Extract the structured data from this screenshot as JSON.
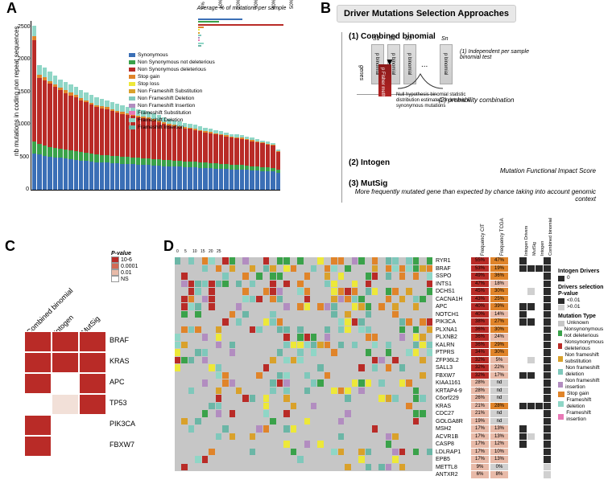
{
  "colors": {
    "synonymous": "#3b6fb6",
    "nonsyn_notdel": "#3aa24a",
    "nonsyn_del": "#b92b27",
    "stop_gain": "#e0842a",
    "stop_loss": "#ede839",
    "nonfs_sub": "#d9a12b",
    "nonfs_del": "#7fc8bb",
    "nonfs_ins": "#b28dc0",
    "fs_sub": "#e879b6",
    "fs_del": "#8fd6c6",
    "fs_ins": "#6bb6a6",
    "bg_gray": "#c6c6c6",
    "heat_high": "#b92b27",
    "heat_mid1": "#d26a55",
    "heat_mid2": "#e8baa8",
    "heat_low": "#f2e0d8",
    "black": "#2b2b2b",
    "dark_gray": "#555555",
    "light_gray": "#d0d0d0",
    "white": "#ffffff"
  },
  "panelA": {
    "label": "A",
    "ylabel": "nb mutations in coding non repeat sequences",
    "yticks": [
      0,
      500,
      1000,
      1500,
      2000,
      2500
    ],
    "ymax": 2600,
    "sub_title": "Average % of mutations per sample",
    "sub_xticks": [
      "0%",
      "10%",
      "20%",
      "30%",
      "40%",
      "50%"
    ],
    "legend": [
      {
        "label": "Synonymous",
        "color_key": "synonymous"
      },
      {
        "label": "Non Synonymous not deleterious",
        "color_key": "nonsyn_notdel"
      },
      {
        "label": "Non Synonymous deleterious",
        "color_key": "nonsyn_del"
      },
      {
        "label": "Stop gain",
        "color_key": "stop_gain"
      },
      {
        "label": "Stop loss",
        "color_key": "stop_loss"
      },
      {
        "label": "Non Frameshift Substitution",
        "color_key": "nonfs_sub"
      },
      {
        "label": "Non Frameshift Deletion",
        "color_key": "nonfs_del"
      },
      {
        "label": "Non Frameshift Insertion",
        "color_key": "nonfs_ins"
      },
      {
        "label": "Frameshift Substitution",
        "color_key": "fs_sub"
      },
      {
        "label": "Frameshift Deletion",
        "color_key": "fs_del"
      },
      {
        "label": "Frameshift Insertion",
        "color_key": "fs_ins"
      }
    ],
    "sub_bars": [
      {
        "color_key": "synonymous",
        "pct": 25
      },
      {
        "color_key": "nonsyn_notdel",
        "pct": 12
      },
      {
        "color_key": "nonsyn_del",
        "pct": 48
      },
      {
        "color_key": "stop_gain",
        "pct": 3
      },
      {
        "color_key": "stop_loss",
        "pct": 1
      },
      {
        "color_key": "nonfs_sub",
        "pct": 1
      },
      {
        "color_key": "nonfs_del",
        "pct": 2
      },
      {
        "color_key": "nonfs_ins",
        "pct": 1
      },
      {
        "color_key": "fs_sub",
        "pct": 1
      },
      {
        "color_key": "fs_del",
        "pct": 3
      },
      {
        "color_key": "fs_ins",
        "pct": 2
      }
    ],
    "bars": [
      {
        "total": 2520,
        "syn": 560,
        "nsnd": 180,
        "nsd": 1560,
        "sg": 60,
        "other": 160
      },
      {
        "total": 1920,
        "syn": 540,
        "nsnd": 160,
        "nsd": 1020,
        "sg": 50,
        "other": 150
      },
      {
        "total": 1880,
        "syn": 520,
        "nsnd": 160,
        "nsd": 1000,
        "sg": 50,
        "other": 150
      },
      {
        "total": 1820,
        "syn": 510,
        "nsnd": 150,
        "nsd": 970,
        "sg": 45,
        "other": 145
      },
      {
        "total": 1760,
        "syn": 500,
        "nsnd": 150,
        "nsd": 930,
        "sg": 40,
        "other": 140
      },
      {
        "total": 1700,
        "syn": 490,
        "nsnd": 140,
        "nsd": 900,
        "sg": 40,
        "other": 130
      },
      {
        "total": 1660,
        "syn": 480,
        "nsnd": 140,
        "nsd": 870,
        "sg": 40,
        "other": 130
      },
      {
        "total": 1620,
        "syn": 470,
        "nsnd": 135,
        "nsd": 850,
        "sg": 38,
        "other": 127
      },
      {
        "total": 1580,
        "syn": 460,
        "nsnd": 130,
        "nsd": 830,
        "sg": 36,
        "other": 124
      },
      {
        "total": 1540,
        "syn": 450,
        "nsnd": 130,
        "nsd": 800,
        "sg": 35,
        "other": 125
      },
      {
        "total": 1500,
        "syn": 440,
        "nsnd": 125,
        "nsd": 780,
        "sg": 34,
        "other": 121
      },
      {
        "total": 1460,
        "syn": 430,
        "nsnd": 125,
        "nsd": 755,
        "sg": 32,
        "other": 118
      },
      {
        "total": 1420,
        "syn": 420,
        "nsnd": 120,
        "nsd": 730,
        "sg": 32,
        "other": 118
      },
      {
        "total": 1400,
        "syn": 415,
        "nsnd": 120,
        "nsd": 720,
        "sg": 30,
        "other": 115
      },
      {
        "total": 1380,
        "syn": 415,
        "nsnd": 115,
        "nsd": 710,
        "sg": 30,
        "other": 110
      },
      {
        "total": 1350,
        "syn": 410,
        "nsnd": 115,
        "nsd": 690,
        "sg": 28,
        "other": 107
      },
      {
        "total": 1320,
        "syn": 405,
        "nsnd": 110,
        "nsd": 670,
        "sg": 28,
        "other": 107
      },
      {
        "total": 1300,
        "syn": 400,
        "nsnd": 110,
        "nsd": 660,
        "sg": 27,
        "other": 103
      },
      {
        "total": 1280,
        "syn": 395,
        "nsnd": 108,
        "nsd": 650,
        "sg": 27,
        "other": 100
      },
      {
        "total": 1260,
        "syn": 395,
        "nsnd": 105,
        "nsd": 635,
        "sg": 26,
        "other": 99
      },
      {
        "total": 1240,
        "syn": 390,
        "nsnd": 105,
        "nsd": 625,
        "sg": 25,
        "other": 95
      },
      {
        "total": 1220,
        "syn": 385,
        "nsnd": 103,
        "nsd": 615,
        "sg": 25,
        "other": 92
      },
      {
        "total": 1200,
        "syn": 380,
        "nsnd": 100,
        "nsd": 605,
        "sg": 25,
        "other": 90
      },
      {
        "total": 1180,
        "syn": 375,
        "nsnd": 100,
        "nsd": 595,
        "sg": 24,
        "other": 86
      },
      {
        "total": 1150,
        "syn": 370,
        "nsnd": 98,
        "nsd": 575,
        "sg": 23,
        "other": 84
      },
      {
        "total": 1120,
        "syn": 365,
        "nsnd": 95,
        "nsd": 560,
        "sg": 22,
        "other": 78
      },
      {
        "total": 1090,
        "syn": 360,
        "nsnd": 93,
        "nsd": 540,
        "sg": 22,
        "other": 75
      },
      {
        "total": 1070,
        "syn": 355,
        "nsnd": 92,
        "nsd": 530,
        "sg": 21,
        "other": 72
      },
      {
        "total": 1050,
        "syn": 355,
        "nsnd": 90,
        "nsd": 515,
        "sg": 20,
        "other": 70
      },
      {
        "total": 1030,
        "syn": 350,
        "nsnd": 88,
        "nsd": 505,
        "sg": 20,
        "other": 67
      },
      {
        "total": 1020,
        "syn": 350,
        "nsnd": 88,
        "nsd": 498,
        "sg": 20,
        "other": 64
      },
      {
        "total": 1000,
        "syn": 345,
        "nsnd": 85,
        "nsd": 490,
        "sg": 19,
        "other": 61
      },
      {
        "total": 980,
        "syn": 340,
        "nsnd": 85,
        "nsd": 478,
        "sg": 19,
        "other": 58
      },
      {
        "total": 960,
        "syn": 335,
        "nsnd": 82,
        "nsd": 468,
        "sg": 18,
        "other": 57
      },
      {
        "total": 940,
        "syn": 330,
        "nsnd": 80,
        "nsd": 458,
        "sg": 18,
        "other": 54
      },
      {
        "total": 920,
        "syn": 328,
        "nsnd": 78,
        "nsd": 448,
        "sg": 17,
        "other": 49
      },
      {
        "total": 900,
        "syn": 320,
        "nsnd": 78,
        "nsd": 440,
        "sg": 17,
        "other": 45
      },
      {
        "total": 880,
        "syn": 318,
        "nsnd": 75,
        "nsd": 428,
        "sg": 16,
        "other": 43
      },
      {
        "total": 860,
        "syn": 315,
        "nsnd": 73,
        "nsd": 415,
        "sg": 16,
        "other": 41
      },
      {
        "total": 850,
        "syn": 312,
        "nsnd": 72,
        "nsd": 410,
        "sg": 16,
        "other": 40
      },
      {
        "total": 840,
        "syn": 310,
        "nsnd": 70,
        "nsd": 405,
        "sg": 15,
        "other": 40
      },
      {
        "total": 820,
        "syn": 305,
        "nsnd": 68,
        "nsd": 395,
        "sg": 15,
        "other": 37
      },
      {
        "total": 800,
        "syn": 300,
        "nsnd": 65,
        "nsd": 383,
        "sg": 15,
        "other": 37
      },
      {
        "total": 780,
        "syn": 295,
        "nsnd": 65,
        "nsd": 372,
        "sg": 14,
        "other": 34
      },
      {
        "total": 760,
        "syn": 290,
        "nsnd": 62,
        "nsd": 362,
        "sg": 14,
        "other": 32
      },
      {
        "total": 740,
        "syn": 285,
        "nsnd": 60,
        "nsd": 350,
        "sg": 14,
        "other": 31
      },
      {
        "total": 720,
        "syn": 280,
        "nsnd": 58,
        "nsd": 340,
        "sg": 13,
        "other": 29
      },
      {
        "total": 620,
        "syn": 260,
        "nsnd": 55,
        "nsd": 270,
        "sg": 12,
        "other": 23
      }
    ]
  },
  "panelB": {
    "label": "B",
    "header": "Driver Mutations Selection Approaches",
    "method1": "(1) Combined binomial",
    "sub1_1": "(1) Independent per sample binomial test",
    "sub1_2": "(2) probability combination",
    "null_text": "Null hypothesis binomial statistic distribution estimated on intronic & synonymous mutations",
    "fisher": "p Fisher method",
    "samples": [
      "S1",
      "S2",
      "S3",
      "Sn"
    ],
    "samp_text": "p binomial",
    "genes_lbl": "genes",
    "method2": "(2) Intogen",
    "desc2": "Mutation Functional Impact Score",
    "method3": "(3) MutSig",
    "desc3": "More frequently mutated gene than expected by chance taking into account genomic context"
  },
  "panelC": {
    "label": "C",
    "cols": [
      "Combined binomial",
      "Intogen",
      "MutSig"
    ],
    "rows": [
      "BRAF",
      "KRAS",
      "APC",
      "TP53",
      "PIK3CA",
      "FBXW7"
    ],
    "legend_title": "P-value",
    "legend_items": [
      {
        "label": "10-6",
        "color": "#b92b27"
      },
      {
        "label": "0.0001",
        "color": "#d26a55"
      },
      {
        "label": "0.01",
        "color": "#e8baa8"
      },
      {
        "label": "NS",
        "color": "#ffffff"
      }
    ],
    "heat": [
      [
        "#b92b27",
        "#b92b27",
        "#b92b27"
      ],
      [
        "#b92b27",
        "#b92b27",
        "#b92b27"
      ],
      [
        "#b92b27",
        "#ffffff",
        "#b92b27"
      ],
      [
        "#ffffff",
        "#f2e0d8",
        "#b92b27"
      ],
      [
        "#b92b27",
        "#ffffff",
        "#ffffff"
      ],
      [
        "#b92b27",
        "#ffffff",
        "#ffffff"
      ]
    ]
  },
  "panelD": {
    "label": "D",
    "xticks": [
      "0",
      "5",
      "10",
      "15",
      "20",
      "25"
    ],
    "freq_headers": [
      "Frequency CIT",
      "Frequency TCGA"
    ],
    "side_headers": [
      "Intogen Drivers",
      "MutSig",
      "Intogen",
      "Combined binomial"
    ],
    "genes": [
      {
        "name": "RYR1",
        "f1": "55%",
        "f1c": "#b92b27",
        "f2": "47%",
        "f2c": "#e0842a"
      },
      {
        "name": "BRAF",
        "f1": "53%",
        "f1c": "#b92b27",
        "f2": "19%",
        "f2c": "#e0842a"
      },
      {
        "name": "SSPO",
        "f1": "49%",
        "f1c": "#b92b27",
        "f2": "36%",
        "f2c": "#e0842a"
      },
      {
        "name": "INTS1",
        "f1": "47%",
        "f1c": "#b92b27",
        "f2": "18%",
        "f2c": "#e8baa8"
      },
      {
        "name": "DCHS1",
        "f1": "45%",
        "f1c": "#b92b27",
        "f2": "30%",
        "f2c": "#e0842a"
      },
      {
        "name": "CACNA1H",
        "f1": "43%",
        "f1c": "#b92b27",
        "f2": "25%",
        "f2c": "#e0842a"
      },
      {
        "name": "APC",
        "f1": "40%",
        "f1c": "#b92b27",
        "f2": "39%",
        "f2c": "#e0842a"
      },
      {
        "name": "NOTCH1",
        "f1": "40%",
        "f1c": "#b92b27",
        "f2": "14%",
        "f2c": "#e8baa8"
      },
      {
        "name": "PIK3CA",
        "f1": "38%",
        "f1c": "#b92b27",
        "f2": "27%",
        "f2c": "#e0842a"
      },
      {
        "name": "PLXNA1",
        "f1": "36%",
        "f1c": "#b92b27",
        "f2": "30%",
        "f2c": "#e0842a"
      },
      {
        "name": "PLXNB2",
        "f1": "36%",
        "f1c": "#b92b27",
        "f2": "24%",
        "f2c": "#e8baa8"
      },
      {
        "name": "KALRN",
        "f1": "36%",
        "f1c": "#b92b27",
        "f2": "29%",
        "f2c": "#e0842a"
      },
      {
        "name": "PTPRS",
        "f1": "34%",
        "f1c": "#b92b27",
        "f2": "30%",
        "f2c": "#e0842a"
      },
      {
        "name": "ZFP36L2",
        "f1": "32%",
        "f1c": "#b92b27",
        "f2": "5%",
        "f2c": "#e8baa8"
      },
      {
        "name": "SALL3",
        "f1": "32%",
        "f1c": "#b92b27",
        "f2": "22%",
        "f2c": "#e8baa8"
      },
      {
        "name": "FBXW7",
        "f1": "32%",
        "f1c": "#b92b27",
        "f2": "17%",
        "f2c": "#e8baa8"
      },
      {
        "name": "KIAA1161",
        "f1": "28%",
        "f1c": "#e8baa8",
        "f2": "nd",
        "f2c": "#d0d0d0"
      },
      {
        "name": "KRTAP4-9",
        "f1": "28%",
        "f1c": "#e8baa8",
        "f2": "nd",
        "f2c": "#d0d0d0"
      },
      {
        "name": "C6orf229",
        "f1": "26%",
        "f1c": "#e8baa8",
        "f2": "nd",
        "f2c": "#d0d0d0"
      },
      {
        "name": "KRAS",
        "f1": "21%",
        "f1c": "#e8baa8",
        "f2": "28%",
        "f2c": "#e0842a"
      },
      {
        "name": "CDC27",
        "f1": "21%",
        "f1c": "#e8baa8",
        "f2": "nd",
        "f2c": "#d0d0d0"
      },
      {
        "name": "GOLGA8R",
        "f1": "19%",
        "f1c": "#e8baa8",
        "f2": "nd",
        "f2c": "#d0d0d0"
      },
      {
        "name": "MSH2",
        "f1": "17%",
        "f1c": "#e8baa8",
        "f2": "13%",
        "f2c": "#e8baa8"
      },
      {
        "name": "ACVR1B",
        "f1": "17%",
        "f1c": "#e8baa8",
        "f2": "13%",
        "f2c": "#e8baa8"
      },
      {
        "name": "CASP8",
        "f1": "17%",
        "f1c": "#e8baa8",
        "f2": "12%",
        "f2c": "#e8baa8"
      },
      {
        "name": "LDLRAP1",
        "f1": "17%",
        "f1c": "#e8baa8",
        "f2": "10%",
        "f2c": "#e8baa8"
      },
      {
        "name": "EPB5",
        "f1": "17%",
        "f1c": "#e8baa8",
        "f2": "13%",
        "f2c": "#e8baa8"
      },
      {
        "name": "METTL8",
        "f1": "9%",
        "f1c": "#e8baa8",
        "f2": "0%",
        "f2c": "#d0d0d0"
      },
      {
        "name": "ANTXR2",
        "f1": "6%",
        "f1c": "#e8baa8",
        "f2": "8%",
        "f2c": "#e8baa8"
      }
    ],
    "legend_groups": [
      {
        "title": "Intogen Drivers",
        "items": [
          {
            "label": "0",
            "color": "#2b2b2b"
          }
        ]
      },
      {
        "title": "Drivers selection P-value",
        "items": [
          {
            "label": "<0.01",
            "color": "#2b2b2b"
          },
          {
            "label": ">0.01",
            "color": "#d0d0d0"
          }
        ]
      },
      {
        "title": "Mutation Type",
        "items": [
          {
            "label": "Unknown",
            "color": "#c6c6c6"
          },
          {
            "label": "Nonsynonymous not deleterious",
            "color": "#3aa24a"
          },
          {
            "label": "Nonsynonymous deleterious",
            "color": "#b92b27"
          },
          {
            "label": "Non frameshift substitution",
            "color": "#d9a12b"
          },
          {
            "label": "Non frameshift deletion",
            "color": "#7fc8bb"
          },
          {
            "label": "Non frameshift insertion",
            "color": "#b28dc0"
          },
          {
            "label": "Stop gain",
            "color": "#e0842a"
          },
          {
            "label": "Frameshift deletion",
            "color": "#8fd6c6"
          },
          {
            "label": "Frameshift insertion",
            "color": "#e879b6"
          }
        ]
      }
    ],
    "side_data": [
      [
        "k",
        "w",
        "w",
        "k"
      ],
      [
        "k",
        "k",
        "k",
        "k"
      ],
      [
        "w",
        "w",
        "w",
        "k"
      ],
      [
        "w",
        "w",
        "w",
        "k"
      ],
      [
        "w",
        "g",
        "w",
        "k"
      ],
      [
        "w",
        "w",
        "w",
        "k"
      ],
      [
        "k",
        "k",
        "w",
        "k"
      ],
      [
        "k",
        "w",
        "w",
        "k"
      ],
      [
        "k",
        "k",
        "w",
        "k"
      ],
      [
        "w",
        "w",
        "w",
        "k"
      ],
      [
        "w",
        "w",
        "w",
        "k"
      ],
      [
        "w",
        "w",
        "w",
        "k"
      ],
      [
        "w",
        "w",
        "w",
        "k"
      ],
      [
        "w",
        "g",
        "w",
        "k"
      ],
      [
        "w",
        "w",
        "w",
        "k"
      ],
      [
        "k",
        "k",
        "w",
        "k"
      ],
      [
        "w",
        "w",
        "w",
        "k"
      ],
      [
        "w",
        "w",
        "w",
        "k"
      ],
      [
        "w",
        "w",
        "w",
        "k"
      ],
      [
        "k",
        "k",
        "k",
        "k"
      ],
      [
        "w",
        "w",
        "w",
        "k"
      ],
      [
        "w",
        "w",
        "w",
        "k"
      ],
      [
        "k",
        "w",
        "w",
        "k"
      ],
      [
        "k",
        "g",
        "w",
        "k"
      ],
      [
        "k",
        "w",
        "w",
        "k"
      ],
      [
        "w",
        "w",
        "w",
        "k"
      ],
      [
        "w",
        "w",
        "w",
        "k"
      ],
      [
        "w",
        "w",
        "w",
        "g"
      ],
      [
        "w",
        "w",
        "w",
        "g"
      ]
    ]
  }
}
